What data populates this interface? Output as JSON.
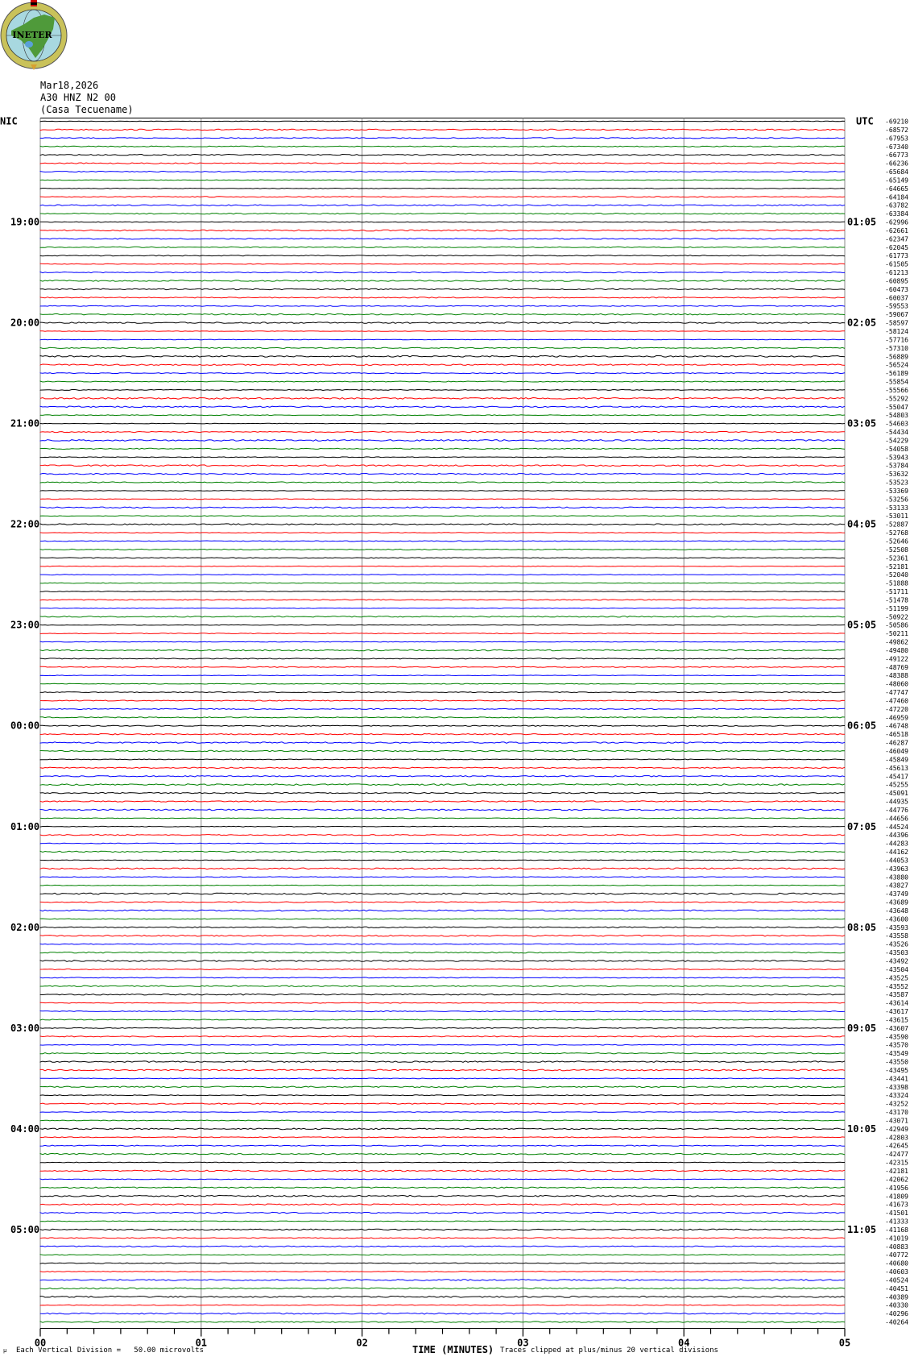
{
  "logo": {
    "text": "INETER",
    "colors": {
      "ring": "#c9c25a",
      "globe": "#a8d8e0",
      "land": "#4f9a3a",
      "lake": "#5aa0d8"
    }
  },
  "header": {
    "date": "Mar18,2026",
    "station": "A30 HNZ N2 00",
    "location": "(Casa Tecuename)"
  },
  "chart_data": {
    "type": "line",
    "trace_colors": [
      "#000000",
      "#ff0000",
      "#0000ff",
      "#008000"
    ],
    "left_hour_labels": [
      "NIC",
      "19:00",
      "20:00",
      "21:00",
      "22:00",
      "23:00",
      "00:00",
      "01:00",
      "02:00",
      "03:00",
      "04:00",
      "05:00"
    ],
    "right_hour_labels": [
      "UTC",
      "01:05",
      "02:05",
      "03:05",
      "04:05",
      "05:05",
      "06:05",
      "07:05",
      "08:05",
      "09:05",
      "10:05",
      "11:05"
    ],
    "rows_per_hour": 12,
    "row_offsets": [
      -69210,
      -68572,
      -67953,
      -67340,
      -66773,
      -66236,
      -65684,
      -65149,
      -64665,
      -64184,
      -63782,
      -63384,
      -62996,
      -62661,
      -62347,
      -62045,
      -61773,
      -61505,
      -61213,
      -60895,
      -60473,
      -60037,
      -59553,
      -59067,
      -58597,
      -58124,
      -57716,
      -57310,
      -56889,
      -56524,
      -56189,
      -55854,
      -55566,
      -55292,
      -55047,
      -54803,
      -54603,
      -54434,
      -54229,
      -54058,
      -53943,
      -53784,
      -53632,
      -53523,
      -53369,
      -53256,
      -53133,
      -53011,
      -52887,
      -52768,
      -52646,
      -52508,
      -52361,
      -52181,
      -52040,
      -51888,
      -51711,
      -51478,
      -51199,
      -50922,
      -50586,
      -50211,
      -49862,
      -49480,
      -49122,
      -48769,
      -48388,
      -48060,
      -47747,
      -47460,
      -47220,
      -46959,
      -46748,
      -46518,
      -46287,
      -46049,
      -45849,
      -45613,
      -45417,
      -45255,
      -45091,
      -44935,
      -44776,
      -44656,
      -44524,
      -44396,
      -44283,
      -44162,
      -44053,
      -43963,
      -43880,
      -43827,
      -43749,
      -43689,
      -43648,
      -43600,
      -43593,
      -43558,
      -43526,
      -43503,
      -43492,
      -43504,
      -43525,
      -43552,
      -43587,
      -43614,
      -43617,
      -43615,
      -43607,
      -43590,
      -43570,
      -43549,
      -43550,
      -43495,
      -43441,
      -43398,
      -43324,
      -43252,
      -43170,
      -43071,
      -42949,
      -42803,
      -42645,
      -42477,
      -42315,
      -42181,
      -42062,
      -41956,
      -41809,
      -41673,
      -41501,
      -41333,
      -41168,
      -41019,
      -40883,
      -40772,
      -40680,
      -40603,
      -40524,
      -40451,
      -40389,
      -40330,
      -40296,
      -40264
    ],
    "x_tick_labels": [
      "00",
      "01",
      "02",
      "03",
      "04",
      "05"
    ],
    "xlim": [
      0,
      5
    ],
    "minor_ticks_per_minute": 6,
    "xlabel": "TIME (MINUTES)",
    "grid": true
  },
  "footer": {
    "scale_note": "Each Vertical Division =   50.00 microvolts",
    "xlabel": "TIME (MINUTES)",
    "clip_note": "Traces clipped at plus/minus 20 vertical divisions"
  }
}
